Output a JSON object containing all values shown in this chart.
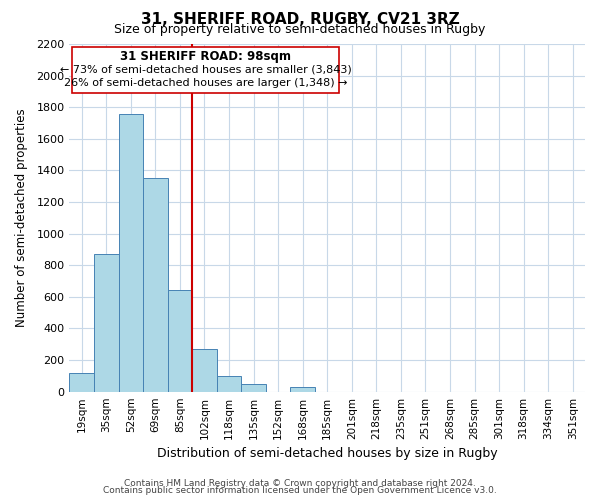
{
  "title": "31, SHERIFF ROAD, RUGBY, CV21 3RZ",
  "subtitle": "Size of property relative to semi-detached houses in Rugby",
  "xlabel": "Distribution of semi-detached houses by size in Rugby",
  "ylabel": "Number of semi-detached properties",
  "bar_labels": [
    "19sqm",
    "35sqm",
    "52sqm",
    "69sqm",
    "85sqm",
    "102sqm",
    "118sqm",
    "135sqm",
    "152sqm",
    "168sqm",
    "185sqm",
    "201sqm",
    "218sqm",
    "235sqm",
    "251sqm",
    "268sqm",
    "285sqm",
    "301sqm",
    "318sqm",
    "334sqm",
    "351sqm"
  ],
  "bar_values": [
    120,
    870,
    1760,
    1350,
    645,
    270,
    100,
    47,
    0,
    30,
    0,
    0,
    0,
    0,
    0,
    0,
    0,
    0,
    0,
    0,
    0
  ],
  "bar_color": "#add8e6",
  "bar_edge_color": "#4682b4",
  "vline_x": 5,
  "vline_color": "#cc0000",
  "ylim": [
    0,
    2200
  ],
  "yticks": [
    0,
    200,
    400,
    600,
    800,
    1000,
    1200,
    1400,
    1600,
    1800,
    2000,
    2200
  ],
  "annotation_title": "31 SHERIFF ROAD: 98sqm",
  "annotation_line1": "← 73% of semi-detached houses are smaller (3,843)",
  "annotation_line2": "26% of semi-detached houses are larger (1,348) →",
  "footer_line1": "Contains HM Land Registry data © Crown copyright and database right 2024.",
  "footer_line2": "Contains public sector information licensed under the Open Government Licence v3.0.",
  "bg_color": "#ffffff",
  "grid_color": "#c8d8e8"
}
